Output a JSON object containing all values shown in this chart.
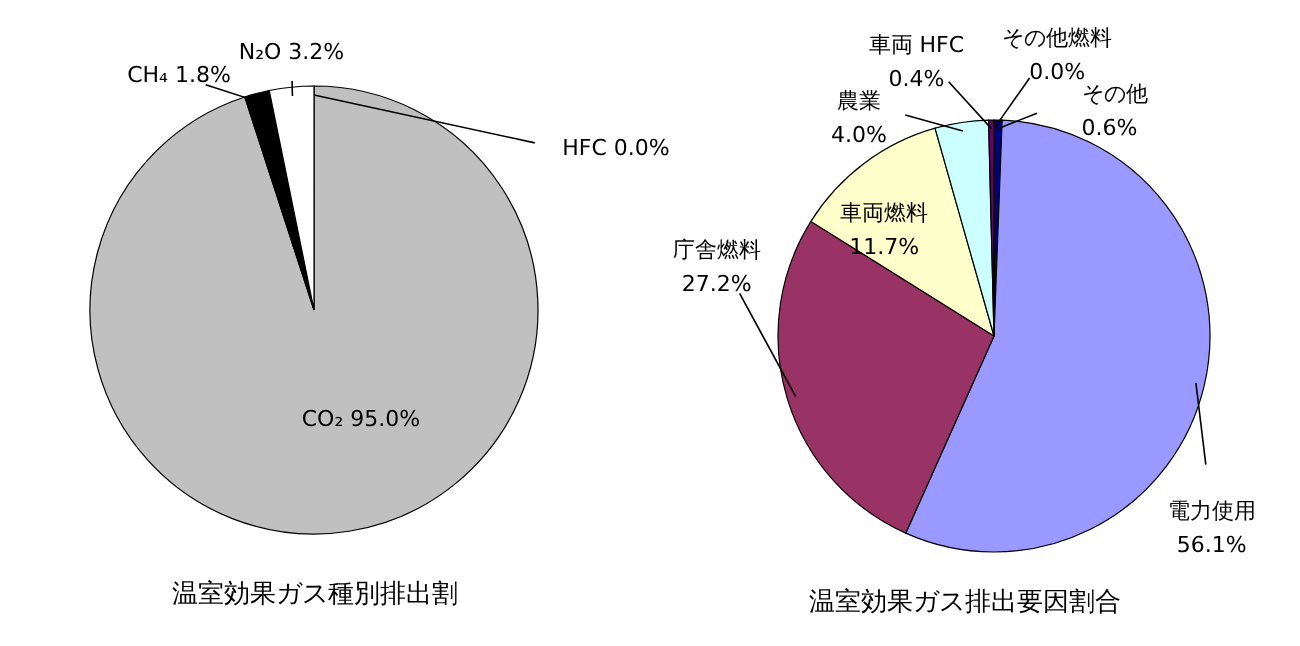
{
  "chart_data": [
    {
      "type": "pie",
      "title": "温室効果ガス種別排出割",
      "categories": [
        "HFC",
        "CO₂",
        "CH₄",
        "N₂O"
      ],
      "values": [
        0.0,
        95.0,
        1.8,
        3.2
      ],
      "colors": [
        "#404040",
        "#c0c0c0",
        "#000000",
        "#ffffff"
      ],
      "value_labels": [
        "0.0%",
        "95.0%",
        "1.8%",
        "3.2%"
      ]
    },
    {
      "type": "pie",
      "title": "温室効果ガス排出要因割合",
      "categories": [
        "その他",
        "電力使用",
        "庁舎燃料",
        "車両燃料",
        "農業",
        "車両 HFC",
        "その他燃料"
      ],
      "values": [
        0.6,
        56.1,
        27.2,
        11.7,
        4.0,
        0.4,
        0.0
      ],
      "colors": [
        "#000080",
        "#9999ff",
        "#993366",
        "#ffffcc",
        "#ccffff",
        "#660066",
        "#333333"
      ],
      "value_labels": [
        "0.6%",
        "56.1%",
        "27.2%",
        "11.7%",
        "4.0%",
        "0.4%",
        "0.0%"
      ]
    }
  ]
}
